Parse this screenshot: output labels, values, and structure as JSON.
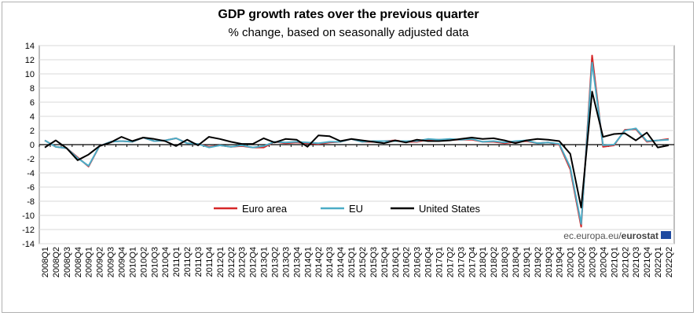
{
  "chart_data": {
    "type": "line",
    "title": "GDP growth rates over the previous quarter",
    "subtitle": "% change, based on seasonally adjusted data",
    "xlabel": "",
    "ylabel": "",
    "ylim": [
      -14,
      14
    ],
    "yticks": [
      14,
      12,
      10,
      8,
      6,
      4,
      2,
      0,
      -2,
      -4,
      -6,
      -8,
      -10,
      -12,
      -14
    ],
    "grid": true,
    "legend_position": "bottom-center",
    "categories": [
      "2008Q1",
      "2008Q2",
      "2008Q3",
      "2008Q4",
      "2009Q1",
      "2009Q2",
      "2009Q3",
      "2009Q4",
      "2010Q1",
      "2010Q2",
      "2010Q3",
      "2010Q4",
      "2011Q1",
      "2011Q2",
      "2011Q3",
      "2011Q4",
      "2012Q1",
      "2012Q2",
      "2012Q3",
      "2012Q4",
      "2013Q1",
      "2013Q2",
      "2013Q3",
      "2013Q4",
      "2014Q1",
      "2014Q2",
      "2014Q3",
      "2014Q4",
      "2015Q1",
      "2015Q2",
      "2015Q3",
      "2015Q4",
      "2016Q1",
      "2016Q2",
      "2016Q3",
      "2016Q4",
      "2017Q1",
      "2017Q2",
      "2017Q3",
      "2017Q4",
      "2018Q1",
      "2018Q2",
      "2018Q3",
      "2018Q4",
      "2019Q1",
      "2019Q2",
      "2019Q3",
      "2019Q4",
      "2020Q1",
      "2020Q2",
      "2020Q3",
      "2020Q4",
      "2021Q1",
      "2021Q2",
      "2021Q3",
      "2021Q4",
      "2022Q1",
      "2022Q2"
    ],
    "series": [
      {
        "name": "Euro area",
        "color": "#d62728",
        "values": [
          0.6,
          -0.3,
          -0.5,
          -1.8,
          -3.1,
          -0.2,
          0.4,
          0.5,
          0.4,
          1.0,
          0.5,
          0.6,
          0.9,
          0.2,
          0.1,
          -0.3,
          -0.1,
          -0.3,
          -0.2,
          -0.4,
          -0.4,
          0.4,
          0.2,
          0.3,
          0.2,
          0.1,
          0.3,
          0.4,
          0.8,
          0.4,
          0.4,
          0.5,
          0.6,
          0.4,
          0.4,
          0.7,
          0.7,
          0.7,
          0.7,
          0.7,
          0.4,
          0.4,
          0.2,
          0.4,
          0.5,
          0.2,
          0.3,
          0.0,
          -3.5,
          -11.6,
          12.6,
          -0.3,
          -0.1,
          2.1,
          2.2,
          0.4,
          0.6,
          0.8
        ]
      },
      {
        "name": "EU",
        "color": "#4bacc6",
        "values": [
          0.6,
          -0.3,
          -0.5,
          -1.9,
          -3.0,
          -0.2,
          0.4,
          0.5,
          0.4,
          1.0,
          0.5,
          0.6,
          0.9,
          0.2,
          0.1,
          -0.4,
          -0.1,
          -0.3,
          -0.1,
          -0.4,
          -0.2,
          0.4,
          0.3,
          0.4,
          0.3,
          0.2,
          0.4,
          0.4,
          0.8,
          0.4,
          0.5,
          0.5,
          0.5,
          0.5,
          0.5,
          0.8,
          0.7,
          0.8,
          0.7,
          0.8,
          0.4,
          0.5,
          0.3,
          0.5,
          0.6,
          0.2,
          0.3,
          0.1,
          -3.2,
          -11.2,
          11.6,
          -0.1,
          0.0,
          2.0,
          2.3,
          0.5,
          0.6,
          0.7
        ]
      },
      {
        "name": "United States",
        "color": "#000000",
        "values": [
          -0.4,
          0.6,
          -0.5,
          -2.2,
          -1.4,
          -0.2,
          0.3,
          1.1,
          0.5,
          1.0,
          0.8,
          0.5,
          -0.2,
          0.7,
          -0.1,
          1.1,
          0.8,
          0.4,
          0.1,
          0.1,
          0.9,
          0.3,
          0.8,
          0.7,
          -0.3,
          1.3,
          1.2,
          0.5,
          0.8,
          0.6,
          0.4,
          0.2,
          0.6,
          0.3,
          0.7,
          0.5,
          0.5,
          0.6,
          0.8,
          1.0,
          0.8,
          0.9,
          0.6,
          0.2,
          0.6,
          0.8,
          0.7,
          0.5,
          -1.3,
          -8.9,
          7.5,
          1.1,
          1.5,
          1.6,
          0.6,
          1.7,
          -0.4,
          -0.1
        ]
      }
    ]
  },
  "source": {
    "text_plain": "ec.europa.eu/",
    "text_bold": "eurostat"
  }
}
